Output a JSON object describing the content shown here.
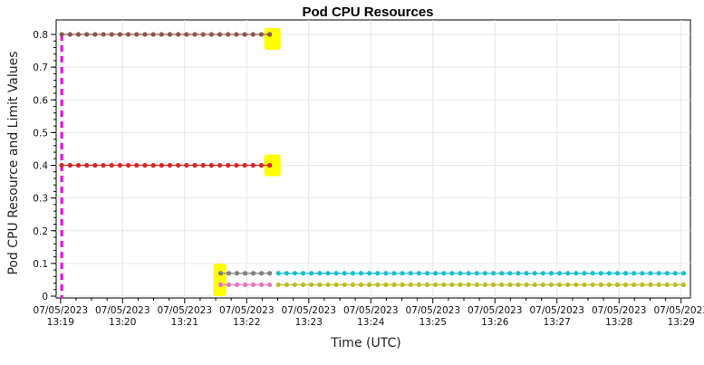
{
  "chart_data": {
    "type": "line",
    "title": "Pod CPU Resources",
    "xlabel": "Time (UTC)",
    "ylabel": "Pod CPU Resource and Limit Values",
    "ylim": [
      0,
      0.82
    ],
    "yticks": [
      0,
      0.1,
      0.2,
      0.3,
      0.4,
      0.5,
      0.6,
      0.7,
      0.8
    ],
    "ytick_labels": [
      "0",
      "0.1",
      "0.2",
      "0.3",
      "0.4",
      "0.5",
      "0.6",
      "0.7",
      "0.8"
    ],
    "xlim_minutes": [
      13.0,
      23.4
    ],
    "xticks": [
      {
        "minute": 19,
        "date": "07/05/2023",
        "time": "13:19"
      },
      {
        "minute": 20,
        "date": "07/05/2023",
        "time": "13:20"
      },
      {
        "minute": 21,
        "date": "07/05/2023",
        "time": "13:21"
      },
      {
        "minute": 22,
        "date": "07/05/2023",
        "time": "13:22"
      },
      {
        "minute": 23,
        "date": "07/05/2023",
        "time": "13:23"
      },
      {
        "minute": 24,
        "date": "07/05/2023",
        "time": "13:24"
      },
      {
        "minute": 25,
        "date": "07/05/2023",
        "time": "13:25"
      },
      {
        "minute": 26,
        "date": "07/05/2023",
        "time": "13:26"
      },
      {
        "minute": 27,
        "date": "07/05/2023",
        "time": "13:27"
      },
      {
        "minute": 28,
        "date": "07/05/2023",
        "time": "13:28"
      },
      {
        "minute": 29,
        "date": "07/05/2023",
        "time": "13:29"
      }
    ],
    "grid": true,
    "vertical_marker": {
      "minute": 19.02,
      "color": "#e600e6",
      "style": "dashed"
    },
    "series": [
      {
        "color": "#8c564b",
        "value": 0.8,
        "start_minute": 19.02,
        "end_minute": 22.37,
        "step_minute": 0.1333
      },
      {
        "color": "#d62728",
        "value": 0.4,
        "start_minute": 19.02,
        "end_minute": 22.37,
        "step_minute": 0.1333
      },
      {
        "color": "#7f7f7f",
        "value": 0.07,
        "start_minute": 21.58,
        "end_minute": 22.37,
        "step_minute": 0.1333
      },
      {
        "color": "#e377c2",
        "value": 0.035,
        "start_minute": 21.58,
        "end_minute": 22.37,
        "step_minute": 0.1333
      },
      {
        "color": "#17becf",
        "value": 0.07,
        "start_minute": 22.51,
        "end_minute": 29.04,
        "step_minute": 0.1333
      },
      {
        "color": "#bcbd22",
        "value": 0.035,
        "start_minute": 22.51,
        "end_minute": 29.04,
        "step_minute": 0.1333
      }
    ],
    "highlights": [
      {
        "color": "#ffff00",
        "minute": 22.37,
        "value": 0.8
      },
      {
        "color": "#ffff00",
        "minute": 22.37,
        "value": 0.4
      },
      {
        "color": "#ffff00",
        "minute": 21.58,
        "value": 0.05
      }
    ]
  }
}
